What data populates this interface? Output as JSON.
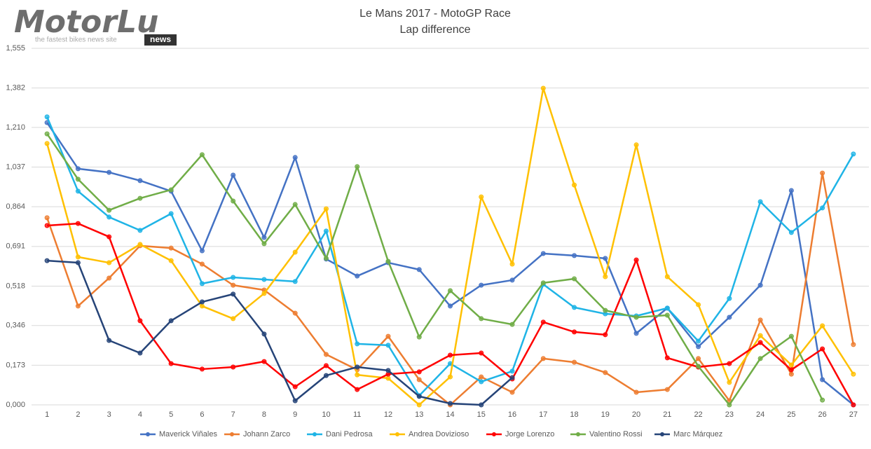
{
  "logo": {
    "name": "MotorLu",
    "badge": "news",
    "tagline": "the fastest bikes news site"
  },
  "chart_data": {
    "type": "line",
    "title": "Le Mans 2017 - MotoGP Race",
    "subtitle": "Lap difference",
    "categories": [
      "1",
      "2",
      "3",
      "4",
      "5",
      "6",
      "7",
      "8",
      "9",
      "10",
      "11",
      "12",
      "13",
      "14",
      "15",
      "16",
      "17",
      "18",
      "19",
      "20",
      "21",
      "22",
      "23",
      "24",
      "25",
      "26",
      "27"
    ],
    "ylim": [
      0,
      1.555
    ],
    "yticks": [
      {
        "value": 0,
        "label": "0,000"
      },
      {
        "value": 0.173,
        "label": "0,173"
      },
      {
        "value": 0.346,
        "label": "0,346"
      },
      {
        "value": 0.518,
        "label": "0,518"
      },
      {
        "value": 0.691,
        "label": "0,691"
      },
      {
        "value": 0.864,
        "label": "0,864"
      },
      {
        "value": 1.037,
        "label": "1,037"
      },
      {
        "value": 1.21,
        "label": "1,210"
      },
      {
        "value": 1.382,
        "label": "1,382"
      },
      {
        "value": 1.555,
        "label": "1,555"
      }
    ],
    "grid": true,
    "legend": "bottom",
    "series": [
      {
        "name": "Maverick Viñales",
        "color": "#4472c4",
        "values": [
          1.231,
          1.03,
          1.014,
          0.978,
          0.932,
          0.672,
          1.002,
          0.73,
          1.079,
          0.636,
          0.562,
          0.62,
          0.59,
          0.431,
          0.522,
          0.544,
          0.66,
          0.651,
          0.639,
          0.312,
          0.422,
          0.254,
          0.382,
          0.522,
          0.935,
          0.11,
          0.0
        ]
      },
      {
        "name": "Johann Zarco",
        "color": "#ed7d31",
        "values": [
          0.816,
          0.431,
          0.553,
          0.694,
          0.684,
          0.614,
          0.522,
          0.501,
          0.4,
          0.22,
          0.153,
          0.299,
          0.11,
          0.0,
          0.122,
          0.055,
          0.202,
          0.186,
          0.141,
          0.055,
          0.067,
          0.202,
          0.018,
          0.37,
          0.134,
          1.011,
          0.263
        ]
      },
      {
        "name": "Dani Pedrosa",
        "color": "#1fb4e6",
        "values": [
          1.256,
          0.932,
          0.819,
          0.761,
          0.834,
          0.529,
          0.556,
          0.547,
          0.538,
          0.758,
          0.266,
          0.26,
          0.04,
          0.18,
          0.101,
          0.147,
          0.526,
          0.425,
          0.397,
          0.388,
          0.422,
          0.278,
          0.464,
          0.886,
          0.752,
          0.859,
          1.094
        ]
      },
      {
        "name": "Andrea Dovizioso",
        "color": "#ffc000",
        "values": [
          1.14,
          0.645,
          0.62,
          0.7,
          0.629,
          0.431,
          0.376,
          0.486,
          0.666,
          0.855,
          0.131,
          0.116,
          0.0,
          0.122,
          0.907,
          0.614,
          1.381,
          0.959,
          0.559,
          1.134,
          0.559,
          0.437,
          0.098,
          0.302,
          0.174,
          0.345,
          0.134
        ]
      },
      {
        "name": "Jorge Lorenzo",
        "color": "#ff0000",
        "values": [
          0.782,
          0.791,
          0.733,
          0.367,
          0.18,
          0.156,
          0.165,
          0.189,
          0.079,
          0.171,
          0.067,
          0.134,
          0.144,
          0.217,
          0.226,
          0.113,
          0.361,
          0.318,
          0.306,
          0.632,
          0.205,
          0.165,
          0.18,
          0.272,
          0.153,
          0.244,
          0.0
        ]
      },
      {
        "name": "Valentino Rossi",
        "color": "#70ad47",
        "values": [
          1.182,
          0.984,
          0.849,
          0.901,
          0.938,
          1.091,
          0.889,
          0.703,
          0.874,
          0.639,
          1.039,
          0.626,
          0.296,
          0.498,
          0.376,
          0.351,
          0.532,
          0.55,
          0.412,
          0.382,
          0.391,
          0.168,
          0.0,
          0.202,
          0.299,
          0.021,
          null
        ]
      },
      {
        "name": "Marc Márquez",
        "color": "#264478",
        "values": [
          0.629,
          0.62,
          0.281,
          0.226,
          0.367,
          0.449,
          0.483,
          0.309,
          0.018,
          0.128,
          0.165,
          0.15,
          0.037,
          0.006,
          0.0,
          0.119,
          null,
          null,
          null,
          null,
          null,
          null,
          null,
          null,
          null,
          null,
          null
        ]
      }
    ]
  }
}
